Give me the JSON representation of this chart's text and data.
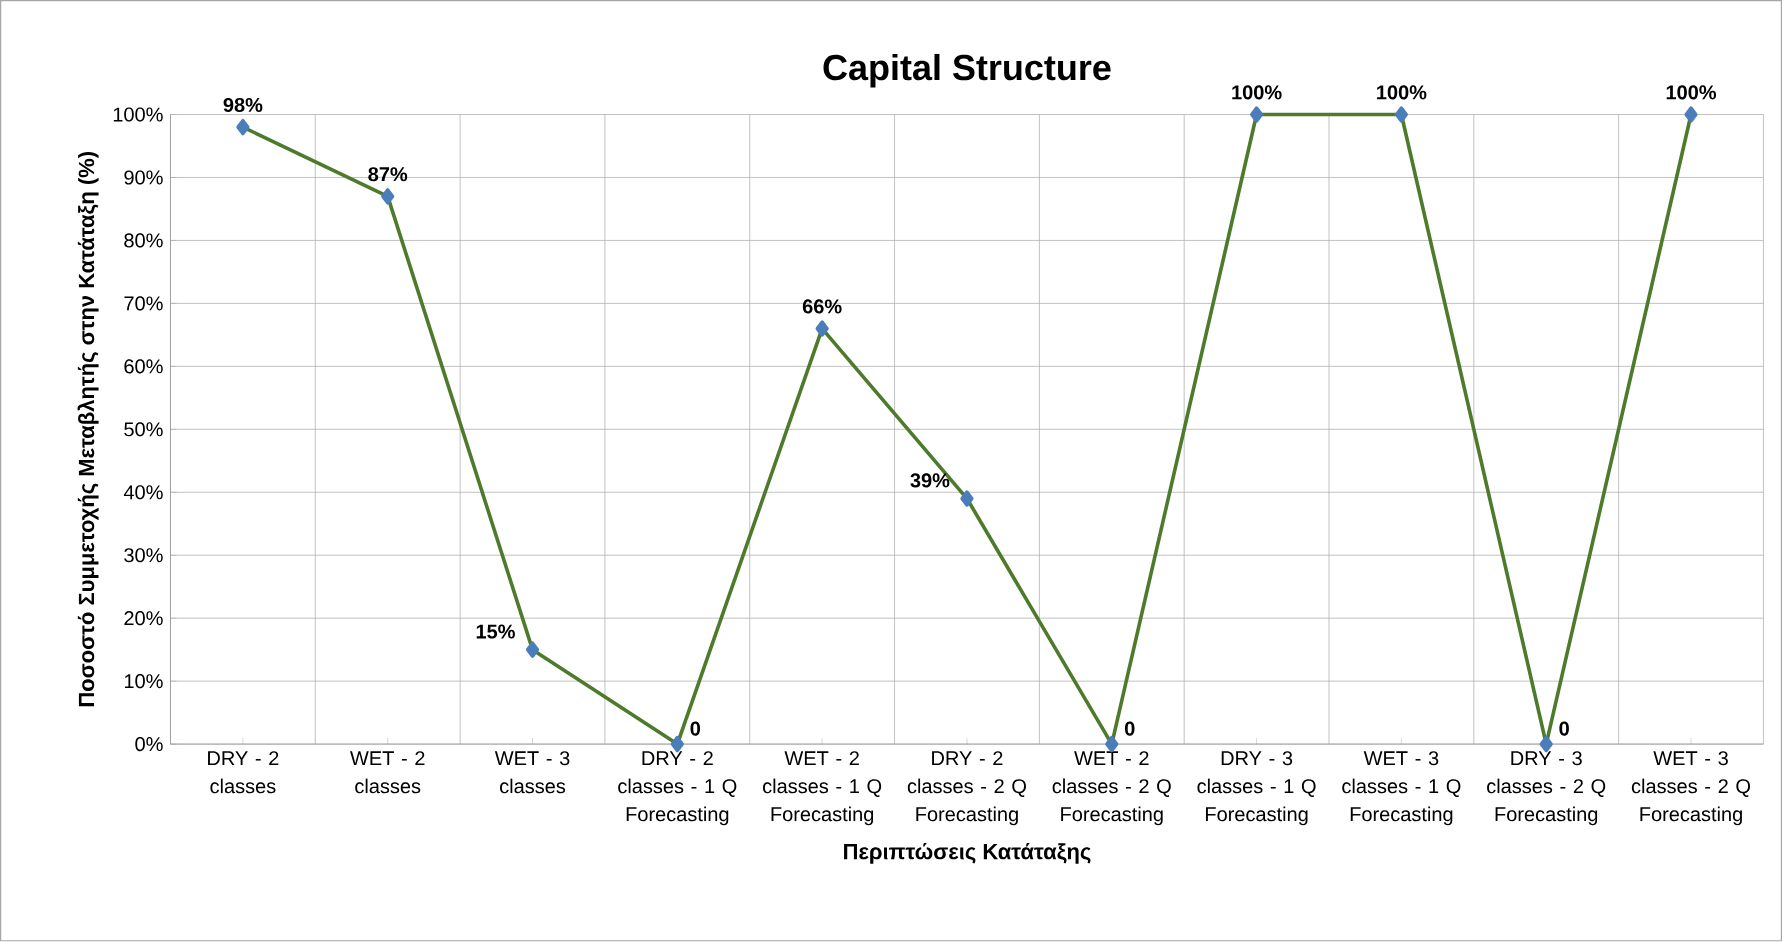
{
  "chart_data": {
    "type": "line",
    "title": "Capital Structure",
    "xlabel": "Περιπτώσεις Κατάταξης",
    "ylabel": "Ποσοστό Συμμετοχής Μεταβλητής στην Κατάταξη (%)",
    "categories": [
      "DRY - 2 classes",
      "WET - 2 classes",
      "WET - 3 classes",
      "DRY - 2 classes - 1 Q Forecasting",
      "WET - 2 classes - 1 Q Forecasting",
      "DRY - 2 classes - 2 Q Forecasting",
      "WET - 2 classes - 2 Q Forecasting",
      "DRY - 3 classes - 1 Q Forecasting",
      "WET - 3 classes - 1 Q Forecasting",
      "DRY - 3 classes - 2 Q Forecasting",
      "WET - 3 classes - 2 Q Forecasting"
    ],
    "values": [
      98,
      87,
      15,
      0,
      66,
      39,
      0,
      100,
      100,
      0,
      100
    ],
    "value_labels": [
      "98%",
      "87%",
      "15%",
      "0",
      "66%",
      "39%",
      "0",
      "100%",
      "100%",
      "0",
      "100%"
    ],
    "color": "#4e7a2c",
    "marker": "diamond",
    "grid": true,
    "ylim": [
      0,
      100
    ],
    "yticks": [
      {
        "value": 0,
        "label": "0%"
      },
      {
        "value": 10,
        "label": "10%"
      },
      {
        "value": 20,
        "label": "20%"
      },
      {
        "value": 30,
        "label": "30%"
      },
      {
        "value": 40,
        "label": "40%"
      },
      {
        "value": 50,
        "label": "50%"
      },
      {
        "value": 60,
        "label": "60%"
      },
      {
        "value": 70,
        "label": "70%"
      },
      {
        "value": 80,
        "label": "80%"
      },
      {
        "value": 90,
        "label": "90%"
      },
      {
        "value": 100,
        "label": "100%"
      }
    ]
  }
}
